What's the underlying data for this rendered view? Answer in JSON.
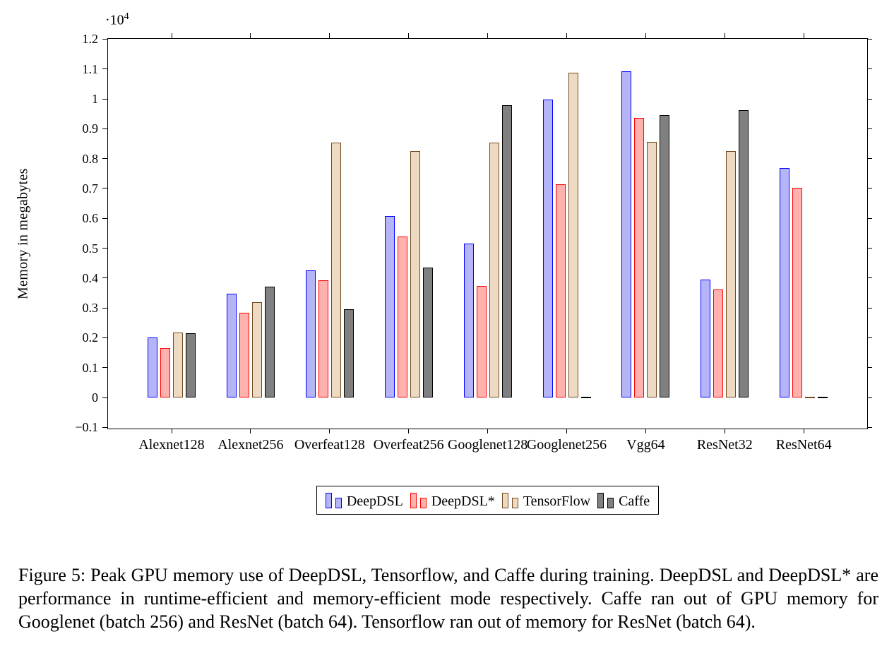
{
  "figure": {
    "caption": "Figure 5: Peak GPU memory use of DeepDSL, Tensorflow, and Caffe during training. DeepDSL and DeepDSL* are performance in runtime-efficient and memory-efficient mode respectively. Caffe ran out of GPU memory for Googlenet (batch 256) and ResNet (batch 64). Tensorflow ran out of memory for ResNet (batch 64)."
  },
  "chart_data": {
    "type": "bar",
    "title": "",
    "xlabel": "",
    "ylabel": "Memory in megabytes",
    "unit": "megabytes",
    "y_scale_label": "·10",
    "y_scale_exponent": "4",
    "grid": false,
    "legend_position": "below",
    "ylim": [
      -1100,
      12100
    ],
    "yticks": [
      {
        "value": 1.2,
        "label": "1.2"
      },
      {
        "value": 1.1,
        "label": "1.1"
      },
      {
        "value": 1.0,
        "label": "1"
      },
      {
        "value": 0.9,
        "label": "0.9"
      },
      {
        "value": 0.8,
        "label": "0.8"
      },
      {
        "value": 0.7,
        "label": "0.7"
      },
      {
        "value": 0.6,
        "label": "0.6"
      },
      {
        "value": 0.5,
        "label": "0.5"
      },
      {
        "value": 0.4,
        "label": "0.4"
      },
      {
        "value": 0.3,
        "label": "0.3"
      },
      {
        "value": 0.2,
        "label": "0.2"
      },
      {
        "value": 0.1,
        "label": "0.1"
      },
      {
        "value": 0.0,
        "label": "0"
      },
      {
        "value": -0.1,
        "label": "−0.1"
      }
    ],
    "categories": [
      "Alexnet128",
      "Alexnet256",
      "Overfeat128",
      "Overfeat256",
      "Googlenet128",
      "Googlenet256",
      "Vgg64",
      "ResNet32",
      "ResNet64"
    ],
    "series": [
      {
        "name": "DeepDSL",
        "fill": "#b4b4f6",
        "stroke": "#0000ff",
        "values": [
          2000,
          3480,
          4250,
          6080,
          5150,
          9980,
          10930,
          3950,
          7680
        ]
      },
      {
        "name": "DeepDSL*",
        "fill": "#ffb2ad",
        "stroke": "#ff0000",
        "values": [
          1660,
          2840,
          3920,
          5400,
          3740,
          7140,
          9360,
          3610,
          7010
        ]
      },
      {
        "name": "TensorFlow",
        "fill": "#eedac3",
        "stroke": "#6e4a1e",
        "values": [
          2180,
          3180,
          8540,
          8260,
          8530,
          10880,
          8560,
          8260,
          0
        ]
      },
      {
        "name": "Caffe",
        "fill": "#808080",
        "stroke": "#000000",
        "values": [
          2150,
          3700,
          2960,
          4360,
          9780,
          0,
          9460,
          9610,
          0
        ]
      }
    ]
  }
}
